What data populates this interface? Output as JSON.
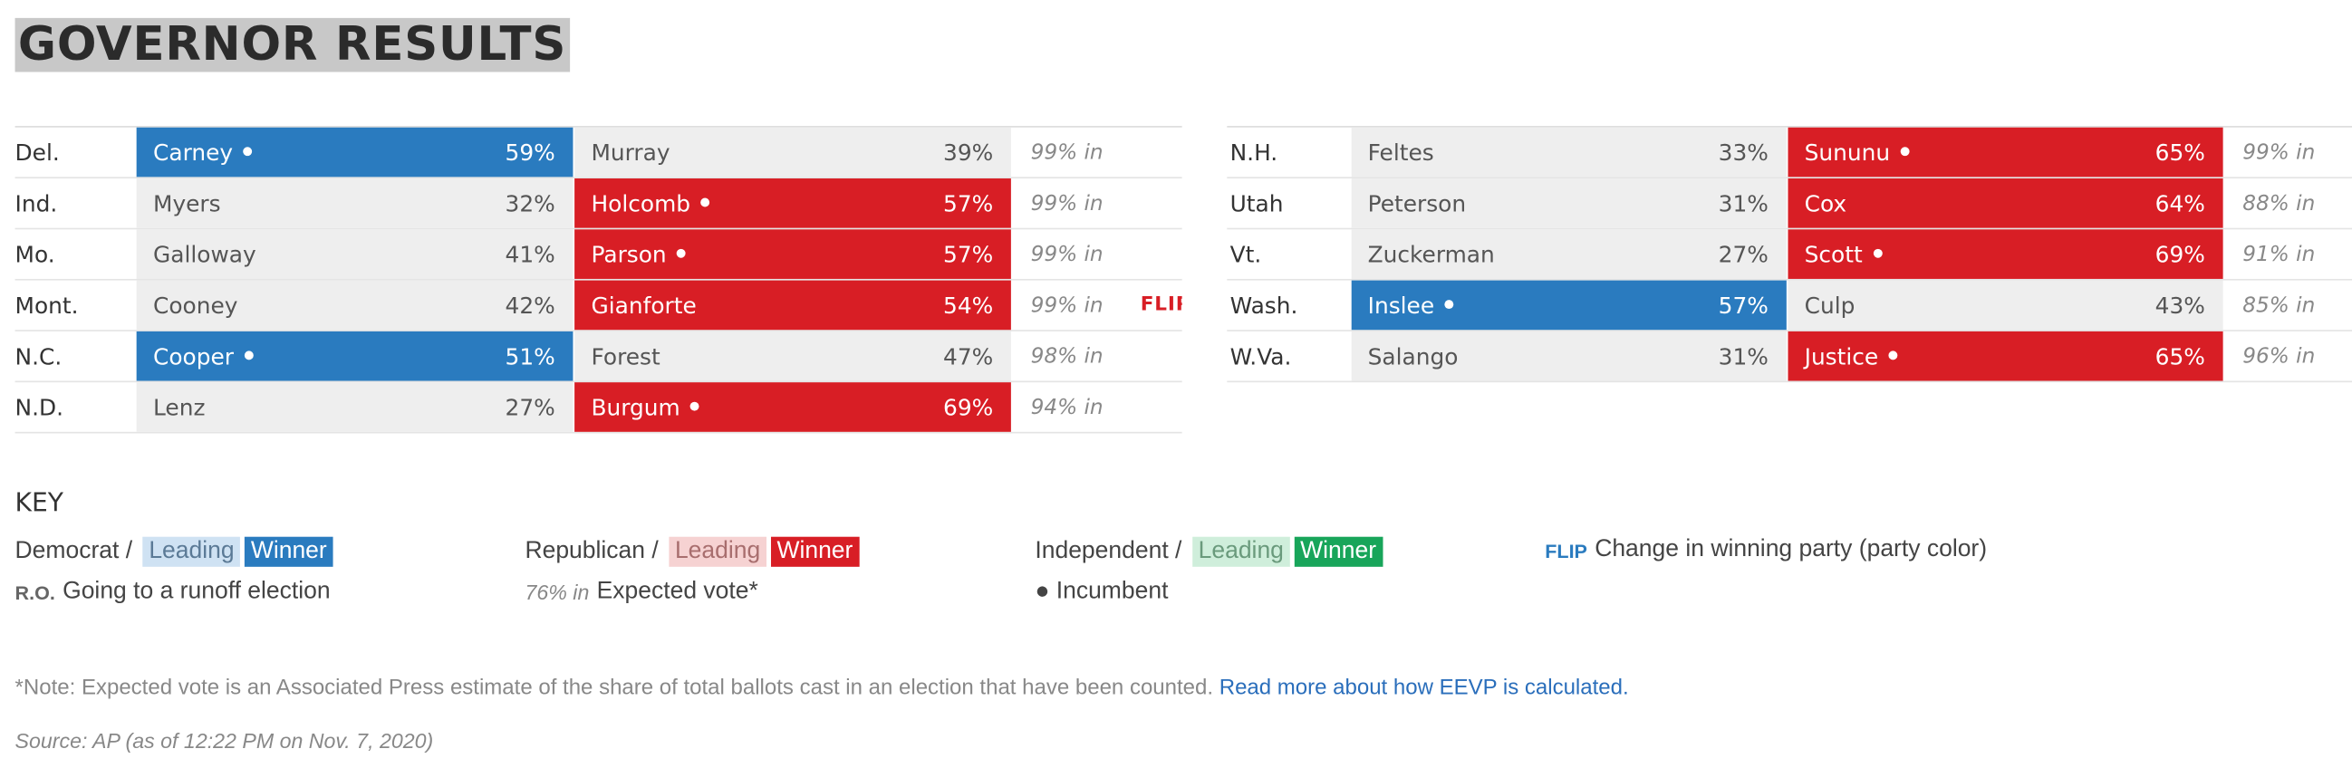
{
  "title": "GOVERNOR RESULTS",
  "colors": {
    "democrat": "#2a7bbf",
    "republican": "#d81e25",
    "independent": "#18a55a"
  },
  "left_table": [
    {
      "state": "Del.",
      "dem": {
        "name": "Carney",
        "pct": "59%",
        "winner": true,
        "incumbent": true
      },
      "rep": {
        "name": "Murray",
        "pct": "39%",
        "winner": false,
        "incumbent": false
      },
      "reporting": "99% in",
      "flip": ""
    },
    {
      "state": "Ind.",
      "dem": {
        "name": "Myers",
        "pct": "32%",
        "winner": false,
        "incumbent": false
      },
      "rep": {
        "name": "Holcomb",
        "pct": "57%",
        "winner": true,
        "incumbent": true
      },
      "reporting": "99% in",
      "flip": ""
    },
    {
      "state": "Mo.",
      "dem": {
        "name": "Galloway",
        "pct": "41%",
        "winner": false,
        "incumbent": false
      },
      "rep": {
        "name": "Parson",
        "pct": "57%",
        "winner": true,
        "incumbent": true
      },
      "reporting": "99% in",
      "flip": ""
    },
    {
      "state": "Mont.",
      "dem": {
        "name": "Cooney",
        "pct": "42%",
        "winner": false,
        "incumbent": false
      },
      "rep": {
        "name": "Gianforte",
        "pct": "54%",
        "winner": true,
        "incumbent": false
      },
      "reporting": "99% in",
      "flip": "FLIP"
    },
    {
      "state": "N.C.",
      "dem": {
        "name": "Cooper",
        "pct": "51%",
        "winner": true,
        "incumbent": true
      },
      "rep": {
        "name": "Forest",
        "pct": "47%",
        "winner": false,
        "incumbent": false
      },
      "reporting": "98% in",
      "flip": ""
    },
    {
      "state": "N.D.",
      "dem": {
        "name": "Lenz",
        "pct": "27%",
        "winner": false,
        "incumbent": false
      },
      "rep": {
        "name": "Burgum",
        "pct": "69%",
        "winner": true,
        "incumbent": true
      },
      "reporting": "94% in",
      "flip": ""
    }
  ],
  "right_table": [
    {
      "state": "N.H.",
      "dem": {
        "name": "Feltes",
        "pct": "33%",
        "winner": false,
        "incumbent": false
      },
      "rep": {
        "name": "Sununu",
        "pct": "65%",
        "winner": true,
        "incumbent": true
      },
      "reporting": "99% in"
    },
    {
      "state": "Utah",
      "dem": {
        "name": "Peterson",
        "pct": "31%",
        "winner": false,
        "incumbent": false
      },
      "rep": {
        "name": "Cox",
        "pct": "64%",
        "winner": true,
        "incumbent": false
      },
      "reporting": "88% in"
    },
    {
      "state": "Vt.",
      "dem": {
        "name": "Zuckerman",
        "pct": "27%",
        "winner": false,
        "incumbent": false
      },
      "rep": {
        "name": "Scott",
        "pct": "69%",
        "winner": true,
        "incumbent": true
      },
      "reporting": "91% in"
    },
    {
      "state": "Wash.",
      "dem": {
        "name": "Inslee",
        "pct": "57%",
        "winner": true,
        "incumbent": true
      },
      "rep": {
        "name": "Culp",
        "pct": "43%",
        "winner": false,
        "incumbent": false
      },
      "reporting": "85% in"
    },
    {
      "state": "W.Va.",
      "dem": {
        "name": "Salango",
        "pct": "31%",
        "winner": false,
        "incumbent": false
      },
      "rep": {
        "name": "Justice",
        "pct": "65%",
        "winner": true,
        "incumbent": true
      },
      "reporting": "96% in"
    }
  ],
  "key": {
    "heading": "KEY",
    "democrat": "Democrat /",
    "republican": "Republican /",
    "independent": "Independent /",
    "leading": "Leading",
    "winner": "Winner",
    "flip_word": "FLIP",
    "flip_desc": "Change in winning party (party color)",
    "ro_word": "R.O.",
    "ro_desc": "Going to a runoff election",
    "expected_sample": "76% in",
    "expected_desc": "Expected vote*",
    "incumbent_desc": "● Incumbent"
  },
  "note": {
    "text": "*Note: Expected vote is an Associated Press estimate of the share of total ballots cast in an election that have been counted.",
    "link": "Read more about how EEVP is calculated."
  },
  "source": "Source: AP (as of 12:22 PM on Nov. 7, 2020)"
}
